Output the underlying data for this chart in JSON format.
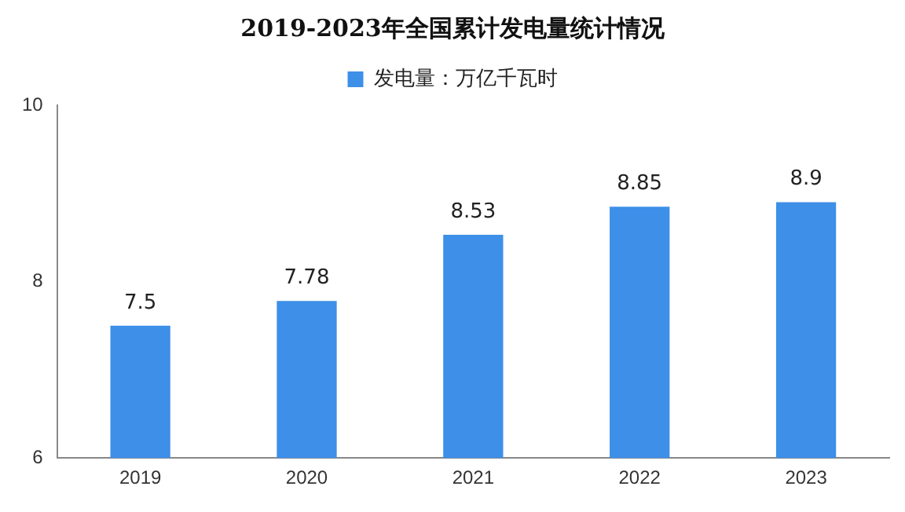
{
  "chart_data": {
    "type": "bar",
    "title": "2019-2023年全国累计发电量统计情况",
    "categories": [
      "2019",
      "2020",
      "2021",
      "2022",
      "2023"
    ],
    "series": [
      {
        "name": "发电量：万亿千瓦时",
        "color": "#3d8fe8",
        "values": [
          7.5,
          7.78,
          8.53,
          8.85,
          8.9
        ]
      }
    ],
    "ylim": [
      6,
      10
    ],
    "yticks": [
      6,
      8,
      10
    ],
    "grid": false,
    "legend": "top",
    "data_labels": true
  }
}
